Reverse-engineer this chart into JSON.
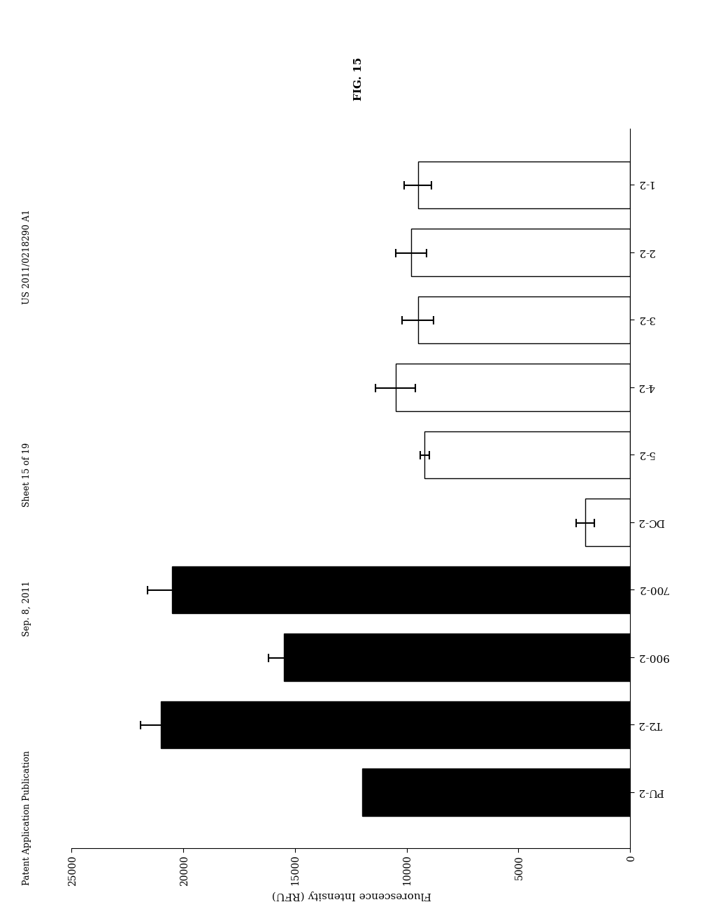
{
  "categories": [
    "PU-2",
    "T2-2",
    "900-2",
    "700-2",
    "DC-2",
    "5-2",
    "4-2",
    "3-2",
    "2-2",
    "1-2"
  ],
  "values": [
    12000,
    21000,
    15500,
    20500,
    2000,
    9200,
    10500,
    9500,
    9800,
    9500
  ],
  "errors": [
    0,
    900,
    700,
    1100,
    400,
    200,
    900,
    700,
    700,
    600
  ],
  "colors": [
    "black",
    "black",
    "black",
    "black",
    "white",
    "white",
    "white",
    "white",
    "white",
    "white"
  ],
  "edge_colors": [
    "black",
    "black",
    "black",
    "black",
    "black",
    "black",
    "black",
    "black",
    "black",
    "black"
  ],
  "ylabel": "Fluorescence Intensity (RFU)",
  "fig_label": "FIG. 15",
  "ylim": [
    0,
    25000
  ],
  "yticks": [
    0,
    5000,
    10000,
    15000,
    20000,
    25000
  ],
  "header_text_left": "Patent Application Publication",
  "header_text_mid1": "Sep. 8, 2011",
  "header_text_mid2": "Sheet 15 of 19",
  "header_text_right": "US 2011/0218290 A1",
  "background_color": "#ffffff",
  "bar_width": 0.7
}
